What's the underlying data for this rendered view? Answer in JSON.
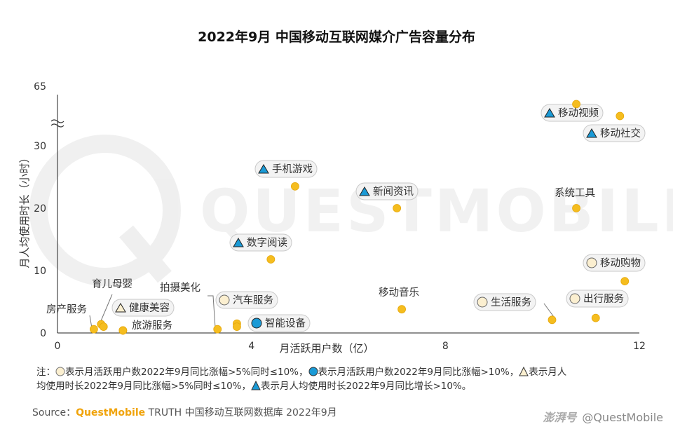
{
  "chart_data": {
    "type": "scatter",
    "title": "2022年9月 中国移动互联网媒介广告容量分布",
    "xlabel": "月活跃用户数（亿）",
    "ylabel": "月人均使用时长（小时）",
    "xlim": [
      0,
      12
    ],
    "xticks": [
      0,
      4,
      8,
      12
    ],
    "xtick_labels": [
      "0",
      "4",
      "8",
      "12"
    ],
    "yticks": [
      0,
      10,
      20,
      30,
      65
    ],
    "ytick_labels": [
      "0",
      "10",
      "20",
      "30",
      "65"
    ],
    "y_axis_break": [
      33,
      60
    ],
    "grid": false,
    "points": [
      {
        "label": "移动视频",
        "x": 10.7,
        "y": 63.5,
        "marker": "triangle-blue"
      },
      {
        "label": "移动社交",
        "x": 11.6,
        "y": 62.5,
        "marker": "triangle-blue"
      },
      {
        "label": "手机游戏",
        "x": 4.9,
        "y": 23.5,
        "marker": "triangle-blue"
      },
      {
        "label": "新闻资讯",
        "x": 7.0,
        "y": 20.0,
        "marker": "triangle-blue"
      },
      {
        "label": "系统工具",
        "x": 10.7,
        "y": 20.0,
        "marker": "none"
      },
      {
        "label": "数字阅读",
        "x": 4.4,
        "y": 11.8,
        "marker": "triangle-blue"
      },
      {
        "label": "移动购物",
        "x": 11.7,
        "y": 8.3,
        "marker": "circle-cream"
      },
      {
        "label": "移动音乐",
        "x": 7.1,
        "y": 3.8,
        "marker": "none"
      },
      {
        "label": "生活服务",
        "x": 10.2,
        "y": 2.1,
        "marker": "circle-cream"
      },
      {
        "label": "出行服务",
        "x": 11.1,
        "y": 2.4,
        "marker": "circle-cream"
      },
      {
        "label": "汽车服务",
        "x": 3.7,
        "y": 1.5,
        "marker": "circle-cream"
      },
      {
        "label": "智能设备",
        "x": 3.7,
        "y": 1.0,
        "marker": "circle-blue"
      },
      {
        "label": "拍摄美化",
        "x": 3.3,
        "y": 0.6,
        "marker": "none"
      },
      {
        "label": "健康美容",
        "x": 1.35,
        "y": 0.4,
        "marker": "triangle-outline"
      },
      {
        "label": "旅游服务",
        "x": 1.35,
        "y": 0.4,
        "marker": "none"
      },
      {
        "label": "育儿母婴",
        "x": 0.9,
        "y": 1.4,
        "marker": "none"
      },
      {
        "label": "育儿母婴",
        "x": 0.95,
        "y": 1.0,
        "marker": "none"
      },
      {
        "label": "房产服务",
        "x": 0.75,
        "y": 0.6,
        "marker": "none"
      }
    ],
    "colors": {
      "point": "#f5bd1f",
      "triangle": "#1a9ad6",
      "circle_blue": "#1a9ad6",
      "circle_cream": "#fbefd0",
      "label_pill": "#f3f3f3"
    }
  },
  "note": {
    "prefix": "注：",
    "p1": "表示月活跃用户数2022年9月同比涨幅>5%同时≤10%，",
    "p2": "表示月活跃用户数2022年9月同比涨幅>10%，",
    "p3": "表示月人",
    "line2_a": "均使用时长2022年9月同比涨幅>5%同时≤10%，",
    "line2_b": "表示月人均使用时长2022年9月同比增长>10%。"
  },
  "source": {
    "prefix": "Source：",
    "brand": "QuestMobile",
    "text": " TRUTH 中国移动互联网数据库 2022年9月"
  },
  "credit": {
    "platform": "澎湃号",
    "author": "@QuestMobile"
  },
  "watermark": "QUESTMOBILE"
}
